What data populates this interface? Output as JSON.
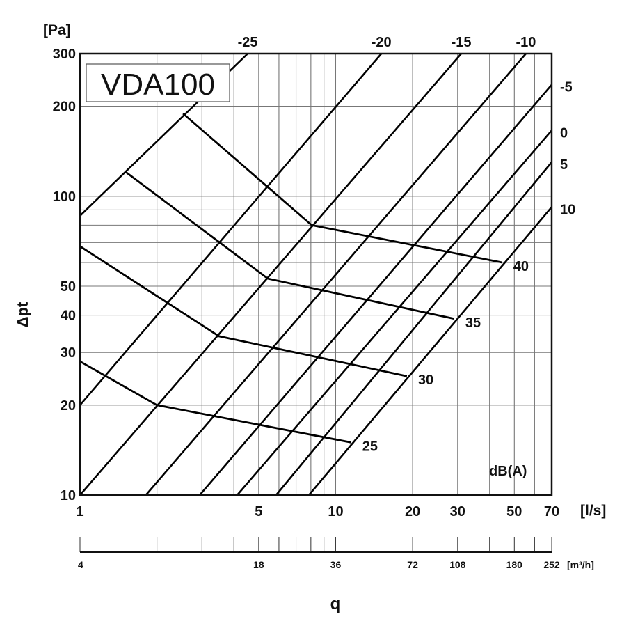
{
  "chart_data": {
    "type": "line",
    "title": "VDA100",
    "xlabel": "q",
    "x_unit": "[l/s]",
    "x2_unit": "[m³/h]",
    "ylabel": "Δpt",
    "y_unit": "[Pa]",
    "xscale": "log",
    "yscale": "log",
    "xlim": [
      1,
      70
    ],
    "ylim": [
      10,
      300
    ],
    "grid": true,
    "x_grid": [
      2,
      3,
      4,
      5,
      6,
      7,
      8,
      9,
      10,
      20,
      30,
      40,
      50,
      60
    ],
    "y_grid": [
      20,
      30,
      40,
      50,
      60,
      70,
      80,
      90,
      100,
      200
    ],
    "x_ticks": [
      {
        "v": 1,
        "label": "1"
      },
      {
        "v": 5,
        "label": "5"
      },
      {
        "v": 10,
        "label": "10"
      },
      {
        "v": 20,
        "label": "20"
      },
      {
        "v": 30,
        "label": "30"
      },
      {
        "v": 50,
        "label": "50"
      },
      {
        "v": 70,
        "label": "70"
      }
    ],
    "y_ticks": [
      {
        "v": 300,
        "label": "300"
      },
      {
        "v": 200,
        "label": "200"
      },
      {
        "v": 100,
        "label": "100"
      },
      {
        "v": 50,
        "label": "50"
      },
      {
        "v": 40,
        "label": "40"
      },
      {
        "v": 30,
        "label": "30"
      },
      {
        "v": 20,
        "label": "20"
      },
      {
        "v": 10,
        "label": "10"
      }
    ],
    "x2_ticks": [
      1,
      2,
      3,
      4,
      5,
      6,
      7,
      8,
      9,
      10,
      20,
      30,
      40,
      50,
      60,
      70
    ],
    "x2_labels": [
      {
        "v": 1,
        "label": "4"
      },
      {
        "v": 5,
        "label": "18"
      },
      {
        "v": 10,
        "label": "36"
      },
      {
        "v": 20,
        "label": "72"
      },
      {
        "v": 30,
        "label": "108"
      },
      {
        "v": 50,
        "label": "180"
      },
      {
        "v": 70,
        "label": "252"
      }
    ],
    "noise_unit_label": "dB(A)",
    "damper_lines": [
      {
        "name": "-25",
        "points": [
          [
            1,
            86
          ],
          [
            4.53,
            300
          ]
        ],
        "label_pos": "top"
      },
      {
        "name": "-20",
        "points": [
          [
            1,
            20
          ],
          [
            15.1,
            300
          ]
        ],
        "label_pos": "top"
      },
      {
        "name": "-15",
        "points": [
          [
            1,
            10
          ],
          [
            31,
            300
          ]
        ],
        "label_pos": "top"
      },
      {
        "name": "-10",
        "points": [
          [
            1.81,
            10
          ],
          [
            55.5,
            300
          ]
        ],
        "label_pos": "top"
      },
      {
        "name": "-5",
        "points": [
          [
            2.94,
            10
          ],
          [
            70,
            236
          ]
        ],
        "label_pos": "right"
      },
      {
        "name": "0",
        "points": [
          [
            4.12,
            10
          ],
          [
            70,
            166
          ]
        ],
        "label_pos": "right"
      },
      {
        "name": "5",
        "points": [
          [
            5.85,
            10
          ],
          [
            70,
            130
          ]
        ],
        "label_pos": "right"
      },
      {
        "name": "10",
        "points": [
          [
            7.86,
            10
          ],
          [
            70,
            92
          ]
        ],
        "label_pos": "right"
      }
    ],
    "series": [
      {
        "name": "40",
        "points": [
          [
            2.53,
            189
          ],
          [
            8.06,
            80
          ],
          [
            44.8,
            60
          ]
        ]
      },
      {
        "name": "35",
        "points": [
          [
            1.5,
            121
          ],
          [
            5.43,
            53
          ],
          [
            29.1,
            38.9
          ]
        ]
      },
      {
        "name": "30",
        "points": [
          [
            1,
            68
          ],
          [
            3.5,
            34
          ],
          [
            19,
            25
          ]
        ]
      },
      {
        "name": "25",
        "points": [
          [
            1,
            28
          ],
          [
            2.0,
            20
          ],
          [
            11.5,
            15
          ]
        ]
      }
    ]
  }
}
